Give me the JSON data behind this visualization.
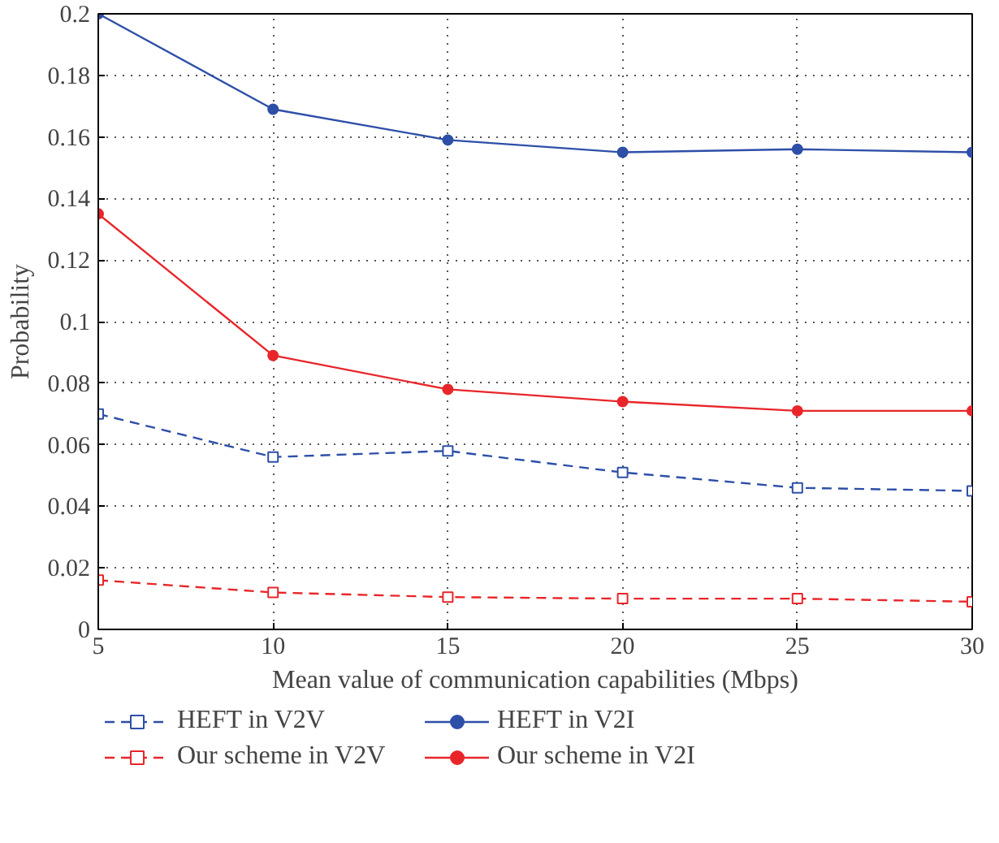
{
  "chart_data": {
    "type": "line",
    "xlabel": "Mean value of communication capabilities (Mbps)",
    "ylabel": "Probability",
    "x": [
      5,
      10,
      15,
      20,
      25,
      30
    ],
    "series": [
      {
        "name": "HEFT in V2V",
        "color": "#2e4fa8",
        "marker": "square",
        "line_style": "dashed",
        "values": [
          0.07,
          0.056,
          0.058,
          0.051,
          0.046,
          0.045
        ]
      },
      {
        "name": "Our scheme in V2V",
        "color": "#e8262a",
        "marker": "square",
        "line_style": "dashed",
        "values": [
          0.016,
          0.012,
          0.0105,
          0.01,
          0.01,
          0.009
        ]
      },
      {
        "name": "HEFT in V2I",
        "color": "#2e4fa8",
        "marker": "circle",
        "line_style": "solid",
        "values": [
          0.2,
          0.169,
          0.159,
          0.155,
          0.156,
          0.155
        ]
      },
      {
        "name": "Our scheme in V2I",
        "color": "#e8262a",
        "marker": "circle",
        "line_style": "solid",
        "values": [
          0.135,
          0.089,
          0.078,
          0.074,
          0.071,
          0.071
        ]
      }
    ],
    "xlim": [
      5,
      30
    ],
    "xticks": [
      5,
      10,
      15,
      20,
      25,
      30
    ],
    "ylim": [
      0,
      0.2
    ],
    "yticks": [
      0,
      0.02,
      0.04,
      0.06,
      0.08,
      0.1,
      0.12,
      0.14,
      0.16,
      0.18,
      0.2
    ],
    "grid": true,
    "legend": "bottom"
  }
}
